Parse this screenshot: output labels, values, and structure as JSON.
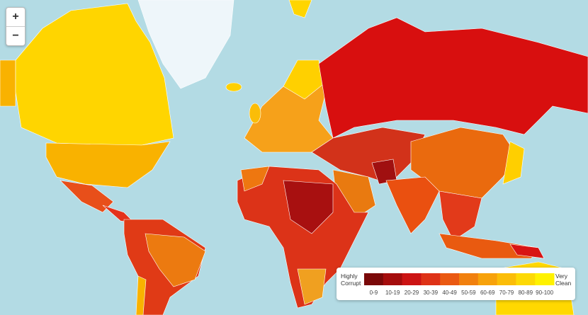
{
  "zoom_controls": {
    "zoom_in": "+",
    "zoom_out": "−"
  },
  "legend": {
    "low_label": "Highly Corrupt",
    "high_label": "Very Clean",
    "bins": [
      {
        "label": "0-9",
        "color": "#7a0909"
      },
      {
        "label": "10-19",
        "color": "#a50d0d"
      },
      {
        "label": "20-29",
        "color": "#cc1414"
      },
      {
        "label": "30-39",
        "color": "#de3217"
      },
      {
        "label": "40-49",
        "color": "#ea5912"
      },
      {
        "label": "50-59",
        "color": "#f1800e"
      },
      {
        "label": "60-69",
        "color": "#f7a20b"
      },
      {
        "label": "70-79",
        "color": "#fbbd08"
      },
      {
        "label": "80-89",
        "color": "#fdd905"
      },
      {
        "label": "90-100",
        "color": "#fff200"
      }
    ]
  }
}
